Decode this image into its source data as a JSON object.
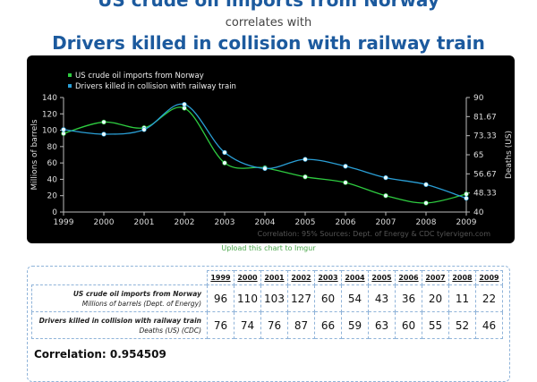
{
  "header": {
    "title_series1": "US crude oil imports from Norway",
    "connector": "correlates with",
    "title_series2": "Drivers killed in collision with railway train"
  },
  "chart_data": {
    "type": "line",
    "x": [
      1999,
      2000,
      2001,
      2002,
      2003,
      2004,
      2005,
      2006,
      2007,
      2008,
      2009
    ],
    "series": [
      {
        "name": "US crude oil imports from Norway",
        "axis": "left",
        "color": "#2ecc40",
        "values": [
          96,
          110,
          103,
          127,
          60,
          54,
          43,
          36,
          20,
          11,
          22
        ]
      },
      {
        "name": "Drivers killed in collision with railway train",
        "axis": "right",
        "color": "#2a9fd6",
        "values": [
          76,
          74,
          76,
          87,
          66,
          59,
          63,
          60,
          55,
          52,
          46
        ]
      }
    ],
    "ylabel_left": "Millions of barrels",
    "ylabel_right": "Deaths (US)",
    "ylim_left": [
      0,
      140
    ],
    "ylim_right": [
      40,
      90
    ],
    "yticks_left": [
      "0",
      "20",
      "40",
      "60",
      "80",
      "100",
      "120",
      "140"
    ],
    "yticks_right": [
      "40",
      "48.33",
      "56.67",
      "65",
      "73.33",
      "81.67",
      "90"
    ],
    "xticks": [
      "1999",
      "2000",
      "2001",
      "2002",
      "2003",
      "2004",
      "2005",
      "2006",
      "2007",
      "2008",
      "2009"
    ],
    "legend_position": "top-left",
    "grid": false,
    "credits": "Correlation: 95%    Sources: Dept. of Energy & CDC    tylervigen.com",
    "upload_link": "Upload this chart to Imgur"
  },
  "table": {
    "years": [
      "1999",
      "2000",
      "2001",
      "2002",
      "2003",
      "2004",
      "2005",
      "2006",
      "2007",
      "2008",
      "2009"
    ],
    "rows": [
      {
        "label": "US crude oil imports from Norway",
        "sublabel": "Millions of barrels (Dept. of Energy)",
        "values": [
          "96",
          "110",
          "103",
          "127",
          "60",
          "54",
          "43",
          "36",
          "20",
          "11",
          "22"
        ]
      },
      {
        "label": "Drivers killed in collision with railway train",
        "sublabel": "Deaths (US) (CDC)",
        "values": [
          "76",
          "74",
          "76",
          "87",
          "66",
          "59",
          "63",
          "60",
          "55",
          "52",
          "46"
        ]
      }
    ],
    "correlation": "Correlation: 0.954509"
  }
}
